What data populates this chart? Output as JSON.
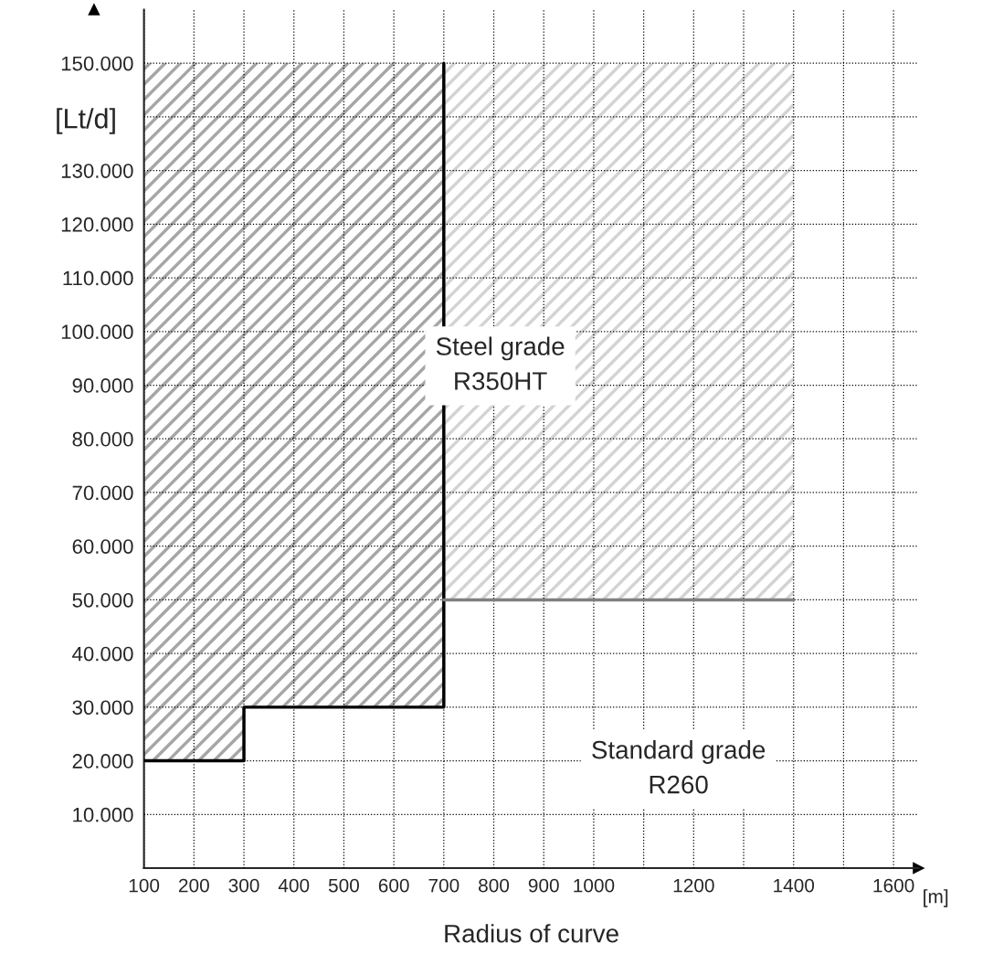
{
  "chart_data": {
    "type": "line",
    "xlabel": "Radius of curve",
    "ylabel": "[Lt/d]",
    "series": [
      {
        "color": "#000000",
        "x": [
          100,
          300,
          300,
          700,
          700
        ],
        "values": [
          20000,
          20000,
          30000,
          30000,
          150000
        ],
        "lower": [
          20000,
          20000,
          30000,
          30000,
          150000
        ],
        "upper": [
          150000,
          150000,
          150000,
          150000,
          150000
        ]
      },
      {
        "color": "#808080",
        "x": [
          700,
          1400
        ],
        "values": [
          50000,
          50000
        ],
        "lower": [
          50000,
          50000
        ],
        "upper": [
          150000,
          150000
        ]
      }
    ],
    "annotations": [
      "Steel grade\nR350HT",
      "Standard grade\nR260",
      "[m]"
    ],
    "xlim": [
      100,
      1650
    ],
    "ylim": [
      0,
      160000
    ],
    "xticks": [
      100,
      200,
      300,
      400,
      500,
      600,
      700,
      800,
      900,
      1000,
      {
        "value": 1100,
        "label": null
      },
      1200,
      {
        "value": 1300,
        "label": null
      },
      1400,
      {
        "value": 1500,
        "label": null
      },
      1600
    ],
    "yticks": [
      {
        "value": 10000,
        "label": "10.000"
      },
      {
        "value": 20000,
        "label": "20.000"
      },
      {
        "value": 30000,
        "label": "30.000"
      },
      {
        "value": 40000,
        "label": "40.000"
      },
      {
        "value": 50000,
        "label": "50.000"
      },
      {
        "value": 60000,
        "label": "60.000"
      },
      {
        "value": 70000,
        "label": "70.000"
      },
      {
        "value": 80000,
        "label": "80.000"
      },
      {
        "value": 90000,
        "label": "90.000"
      },
      {
        "value": 100000,
        "label": "100.000"
      },
      {
        "value": 110000,
        "label": "110.000"
      },
      {
        "value": 120000,
        "label": "120.000"
      },
      {
        "value": 130000,
        "label": "130.000"
      },
      {
        "value": 140000,
        "label": null
      },
      {
        "value": 150000,
        "label": "150.000"
      }
    ],
    "grid": true,
    "legend": false,
    "line_style": "solid",
    "marker": "none"
  }
}
